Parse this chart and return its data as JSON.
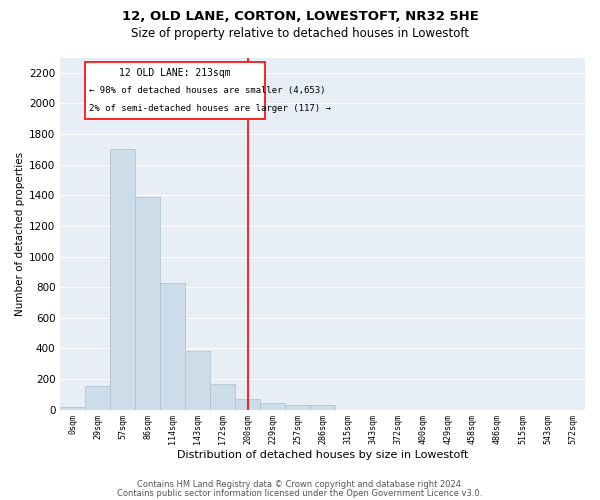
{
  "title": "12, OLD LANE, CORTON, LOWESTOFT, NR32 5HE",
  "subtitle": "Size of property relative to detached houses in Lowestoft",
  "xlabel": "Distribution of detached houses by size in Lowestoft",
  "ylabel": "Number of detached properties",
  "bar_color": "#ccdce8",
  "bar_edge_color": "#aabfd0",
  "background_color": "#e8eef5",
  "grid_color": "#ffffff",
  "bin_labels": [
    "0sqm",
    "29sqm",
    "57sqm",
    "86sqm",
    "114sqm",
    "143sqm",
    "172sqm",
    "200sqm",
    "229sqm",
    "257sqm",
    "286sqm",
    "315sqm",
    "343sqm",
    "372sqm",
    "400sqm",
    "429sqm",
    "458sqm",
    "486sqm",
    "515sqm",
    "543sqm",
    "572sqm"
  ],
  "bar_heights": [
    20,
    155,
    1700,
    1390,
    830,
    385,
    165,
    70,
    40,
    30,
    30,
    0,
    0,
    0,
    0,
    0,
    0,
    0,
    0,
    0,
    0
  ],
  "vline_x": 7.5,
  "annotation_line1": "12 OLD LANE: 213sqm",
  "annotation_line2": "← 98% of detached houses are smaller (4,653)",
  "annotation_line3": "2% of semi-detached houses are larger (117) →",
  "ylim": [
    0,
    2300
  ],
  "yticks": [
    0,
    200,
    400,
    600,
    800,
    1000,
    1200,
    1400,
    1600,
    1800,
    2000,
    2200
  ],
  "footer_line1": "Contains HM Land Registry data © Crown copyright and database right 2024.",
  "footer_line2": "Contains public sector information licensed under the Open Government Licence v3.0."
}
